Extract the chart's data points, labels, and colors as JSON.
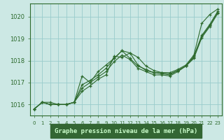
{
  "title": "Graphe pression niveau de la mer (hPa)",
  "bg_color": "#cce8e4",
  "grid_color": "#99cccc",
  "line_color": "#2d6a2d",
  "xlabel_bg": "#336633",
  "xlabel_fg": "#ccffcc",
  "x_ticks": [
    0,
    1,
    2,
    3,
    4,
    5,
    6,
    7,
    8,
    9,
    10,
    11,
    12,
    13,
    14,
    15,
    16,
    17,
    18,
    19,
    20,
    21,
    22,
    23
  ],
  "ylim": [
    1015.5,
    1020.6
  ],
  "yticks": [
    1016,
    1017,
    1018,
    1019,
    1020
  ],
  "series": [
    [
      1015.8,
      1016.1,
      1016.1,
      1016.0,
      1016.0,
      1016.1,
      1017.3,
      1017.0,
      1017.5,
      1017.8,
      1018.1,
      1018.45,
      1018.35,
      1018.15,
      1017.75,
      1017.55,
      1017.45,
      1017.45,
      1017.6,
      1017.8,
      1018.25,
      1019.7,
      1020.1,
      1020.35
    ],
    [
      1015.8,
      1016.1,
      1016.0,
      1016.0,
      1016.0,
      1016.1,
      1016.6,
      1016.85,
      1017.15,
      1017.35,
      1018.2,
      1018.15,
      1018.35,
      1017.8,
      1017.55,
      1017.45,
      1017.45,
      1017.4,
      1017.55,
      1017.75,
      1018.15,
      1019.1,
      1019.6,
      1020.2
    ],
    [
      1015.8,
      1016.1,
      1016.0,
      1016.0,
      1016.0,
      1016.1,
      1016.9,
      1017.1,
      1017.35,
      1017.65,
      1018.1,
      1018.45,
      1018.1,
      1017.75,
      1017.6,
      1017.45,
      1017.4,
      1017.35,
      1017.55,
      1017.75,
      1018.2,
      1019.15,
      1019.65,
      1020.25
    ],
    [
      1015.8,
      1016.1,
      1016.0,
      1016.0,
      1016.0,
      1016.1,
      1016.75,
      1017.0,
      1017.25,
      1017.5,
      1017.95,
      1018.25,
      1018.05,
      1017.65,
      1017.5,
      1017.35,
      1017.35,
      1017.3,
      1017.5,
      1017.75,
      1018.1,
      1019.05,
      1019.55,
      1020.15
    ]
  ]
}
